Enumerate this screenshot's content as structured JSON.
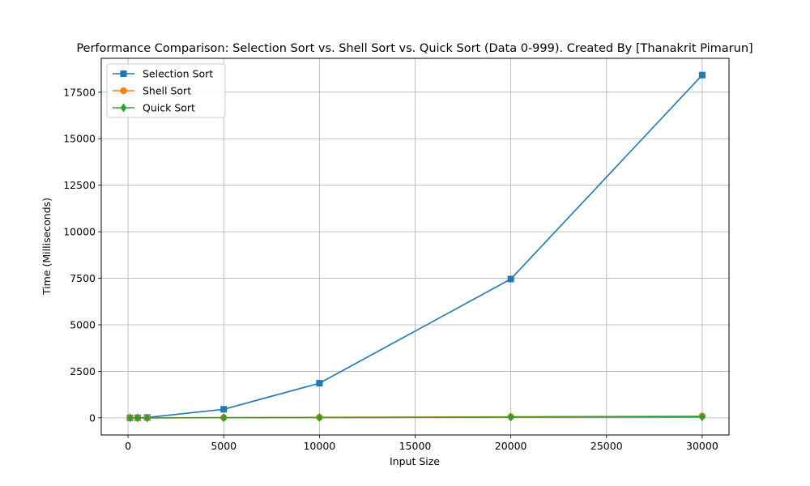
{
  "chart_data": {
    "type": "line",
    "title": "Performance Comparison: Selection Sort vs. Shell Sort vs. Quick Sort (Data 0-999). Created By [Thanakrit Pimarun]",
    "xlabel": "Input Size",
    "ylabel": "Time (Milliseconds)",
    "xlim": [
      -1400,
      31400
    ],
    "ylim": [
      -920,
      19320
    ],
    "xticks": [
      0,
      5000,
      10000,
      15000,
      20000,
      25000,
      30000
    ],
    "yticks": [
      0,
      2500,
      5000,
      7500,
      10000,
      12500,
      15000,
      17500
    ],
    "grid": true,
    "legend_position": "top-left",
    "series": [
      {
        "name": "Selection Sort",
        "color": "#1f77b4",
        "marker": "square",
        "x": [
          100,
          500,
          1000,
          5000,
          10000,
          20000,
          30000
        ],
        "y": [
          0.4,
          5,
          20,
          460,
          1860,
          7460,
          18420
        ]
      },
      {
        "name": "Shell Sort",
        "color": "#ff7f0e",
        "marker": "circle",
        "x": [
          100,
          500,
          1000,
          5000,
          10000,
          20000,
          30000
        ],
        "y": [
          0.1,
          0.8,
          2,
          12,
          28,
          60,
          95
        ]
      },
      {
        "name": "Quick Sort",
        "color": "#2ca02c",
        "marker": "diamond",
        "x": [
          100,
          500,
          1000,
          5000,
          10000,
          20000,
          30000
        ],
        "y": [
          0.1,
          0.5,
          1.2,
          7,
          15,
          33,
          52
        ]
      }
    ]
  }
}
